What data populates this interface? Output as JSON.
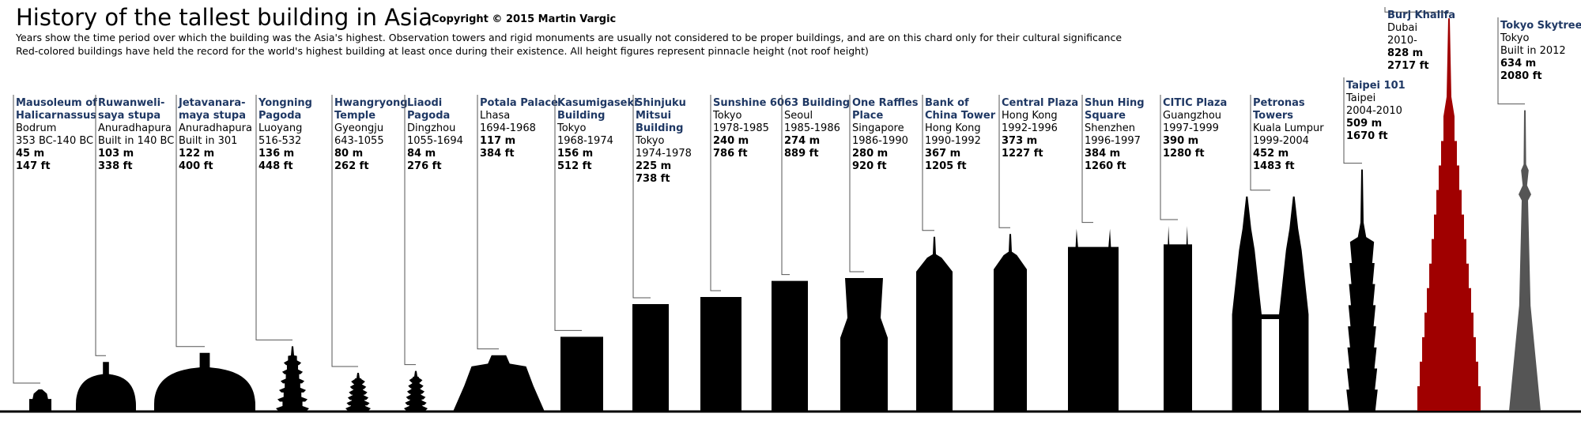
{
  "title": "History of the tallest building in Asia",
  "copyright": "Copyright © 2015 Martin Vargic",
  "notes": [
    "Years show the time period over which the building was the Asia's highest. Observation towers and rigid monuments are usually not considered to be proper buildings, and are on this chard only for their cultural significance",
    "Red-colored buildings have held the record for the world's highest building at least once during  their existence. All height figures represent pinnacle height (not roof height)"
  ],
  "buildings": [
    {
      "name_lines": [
        "Mausoleum of",
        "Halicarnassus"
      ],
      "place": "Bodrum",
      "period": "353 BC-140 BC",
      "height": 45,
      "height_label": "45 m",
      "feet_label": "147 ft",
      "color": "#000000"
    },
    {
      "name_lines": [
        "Ruwanweli-",
        "saya stupa"
      ],
      "place": "Anuradhapura",
      "period": "Built in 140 BC",
      "height": 103,
      "height_label": "103 m",
      "feet_label": "338 ft",
      "color": "#000000"
    },
    {
      "name_lines": [
        "Jetavanara-",
        "maya stupa"
      ],
      "place": "Anuradhapura",
      "period": "Built in 301",
      "height": 122,
      "height_label": "122 m",
      "feet_label": "400 ft",
      "color": "#000000"
    },
    {
      "name_lines": [
        "Yongning",
        "Pagoda"
      ],
      "place": "Luoyang",
      "period": "516-532",
      "height": 136,
      "height_label": "136 m",
      "feet_label": "448 ft",
      "color": "#000000"
    },
    {
      "name_lines": [
        "Hwangryong",
        "Temple"
      ],
      "place": "Gyeongju",
      "period": "643-1055",
      "height": 80,
      "height_label": "80 m",
      "feet_label": "262 ft",
      "color": "#000000"
    },
    {
      "name_lines": [
        "Liaodi",
        "Pagoda"
      ],
      "place": "Dingzhou",
      "period": "1055-1694",
      "height": 84,
      "height_label": "84 m",
      "feet_label": "276 ft",
      "color": "#000000"
    },
    {
      "name_lines": [
        "Potala Palace"
      ],
      "place": "Lhasa",
      "period": "1694-1968",
      "height": 117,
      "height_label": "117 m",
      "feet_label": "384 ft",
      "color": "#000000"
    },
    {
      "name_lines": [
        "Kasumigaseki",
        "Building"
      ],
      "place": "Tokyo",
      "period": "1968-1974",
      "height": 156,
      "height_label": "156 m",
      "feet_label": "512 ft",
      "color": "#000000"
    },
    {
      "name_lines": [
        "Shinjuku",
        "Mitsui",
        "Building"
      ],
      "place": "Tokyo",
      "period": "1974-1978",
      "height": 225,
      "height_label": "225 m",
      "feet_label": "738 ft",
      "color": "#000000"
    },
    {
      "name_lines": [
        "Sunshine 60"
      ],
      "place": "Tokyo",
      "period": "1978-1985",
      "height": 240,
      "height_label": "240 m",
      "feet_label": "786 ft",
      "color": "#000000"
    },
    {
      "name_lines": [
        "63 Building"
      ],
      "place": "Seoul",
      "period": "1985-1986",
      "height": 274,
      "height_label": "274 m",
      "feet_label": "889 ft",
      "color": "#000000"
    },
    {
      "name_lines": [
        "One Raffles",
        "Place"
      ],
      "place": "Singapore",
      "period": "1986-1990",
      "height": 280,
      "height_label": "280 m",
      "feet_label": "920 ft",
      "color": "#000000"
    },
    {
      "name_lines": [
        "Bank of",
        "China Tower"
      ],
      "place": "Hong Kong",
      "period": "1990-1992",
      "height": 367,
      "height_label": "367 m",
      "feet_label": "1205 ft",
      "color": "#000000"
    },
    {
      "name_lines": [
        "Central Plaza"
      ],
      "place": "Hong Kong",
      "period": "1992-1996",
      "height": 373,
      "height_label": "373 m",
      "feet_label": "1227 ft",
      "color": "#000000"
    },
    {
      "name_lines": [
        "Shun Hing",
        "Square"
      ],
      "place": "Shenzhen",
      "period": "1996-1997",
      "height": 384,
      "height_label": "384 m",
      "feet_label": "1260 ft",
      "color": "#000000"
    },
    {
      "name_lines": [
        "CITIC Plaza"
      ],
      "place": "Guangzhou",
      "period": "1997-1999",
      "height": 390,
      "height_label": "390 m",
      "feet_label": "1280 ft",
      "color": "#000000"
    },
    {
      "name_lines": [
        "Petronas",
        "Towers"
      ],
      "place": "Kuala Lumpur",
      "period": "1999-2004",
      "height": 452,
      "height_label": "452 m",
      "feet_label": "1483 ft",
      "color": "#000000"
    },
    {
      "name_lines": [
        "Taipei 101"
      ],
      "place": "Taipei",
      "period": "2004-2010",
      "height": 509,
      "height_label": "509 m",
      "feet_label": "1670 ft",
      "color": "#000000"
    },
    {
      "name_lines": [
        "Burj Khalifa"
      ],
      "place": "Dubai",
      "period": "2010-",
      "height": 828,
      "height_label": "828 m",
      "feet_label": "2717 ft",
      "color": "#a00000"
    },
    {
      "name_lines": [
        "Tokyo Skytree"
      ],
      "place": "Tokyo",
      "period": "Built in 2012",
      "height": 634,
      "height_label": "634 m",
      "feet_label": "2080 ft",
      "color": "#555555"
    }
  ]
}
